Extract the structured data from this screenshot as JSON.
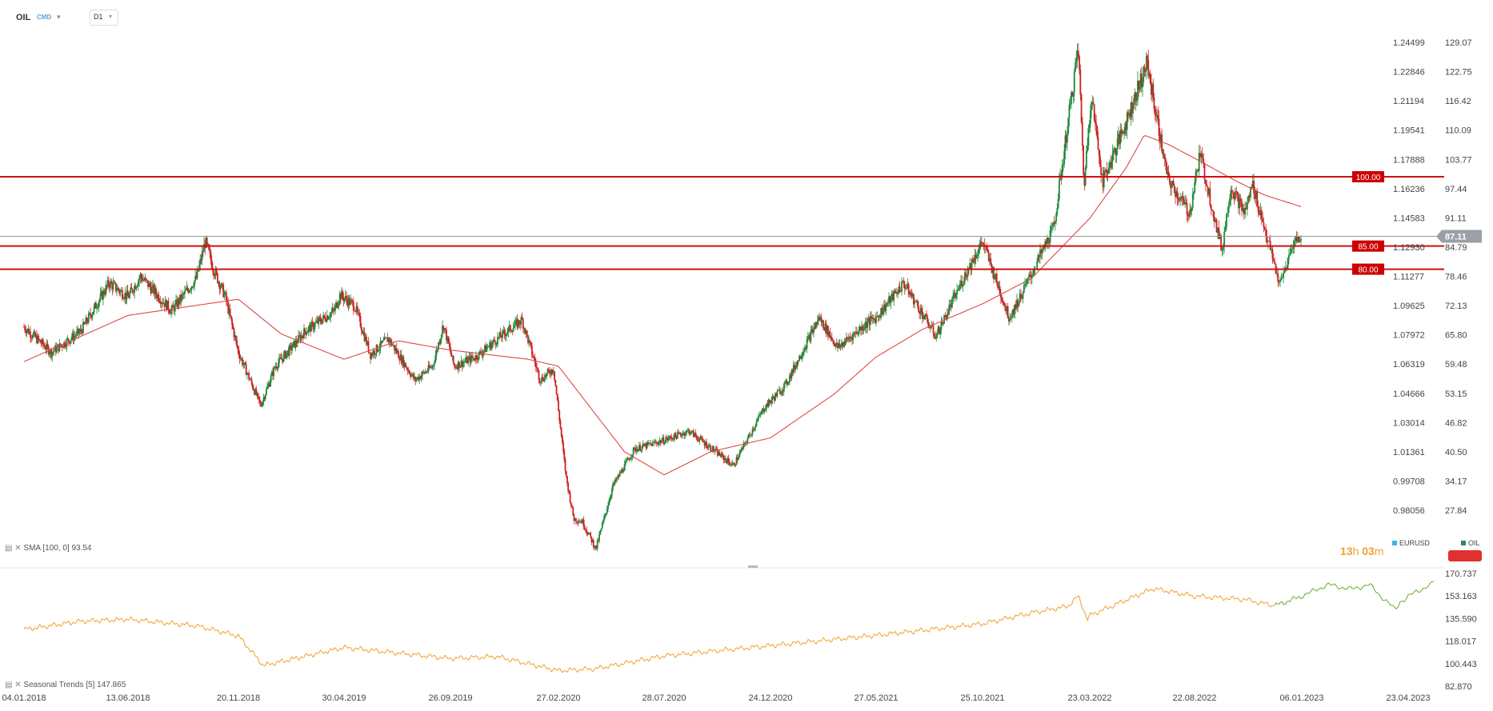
{
  "toolbar": {
    "symbol": "OIL",
    "symbol_type": "CMD",
    "timeframe": "D1"
  },
  "colors": {
    "up_candle": "#1a8a3a",
    "down_candle": "#cc2222",
    "sma_line": "#e04848",
    "level_line": "#d01010",
    "level_label_bg": "#cc0000",
    "price_tag_bg": "#9aa0a6",
    "seasonal_main": "#f0a030",
    "seasonal_forecast": "#6aaa2a",
    "eurusd_legend": "#3ab7e0",
    "oil_legend": "#2a8a5a"
  },
  "chart_data": [
    {
      "type": "candlestick",
      "title": "OIL",
      "timeframe": "D1",
      "x_ticks": [
        "04.01.2018",
        "13.06.2018",
        "20.11.2018",
        "30.04.2019",
        "26.09.2019",
        "27.02.2020",
        "28.07.2020",
        "24.12.2020",
        "27.05.2021",
        "25.10.2021",
        "23.03.2022",
        "22.08.2022",
        "06.01.2023",
        "23.04.2023"
      ],
      "y_right_ticks": [
        "129.07",
        "122.75",
        "116.42",
        "110.09",
        "103.77",
        "97.44",
        "91.11",
        "84.79",
        "78.46",
        "72.13",
        "65.80",
        "59.48",
        "53.15",
        "46.82",
        "40.50",
        "34.17",
        "27.84"
      ],
      "y_left_ticks": [
        "1.24499",
        "1.22846",
        "1.21194",
        "1.19541",
        "1.17888",
        "1.16236",
        "1.14583",
        "1.12930",
        "1.11277",
        "1.09625",
        "1.07972",
        "1.06319",
        "1.04666",
        "1.03014",
        "1.01361",
        "0.99708",
        "0.98056"
      ],
      "ylim": [
        22.0,
        133.0
      ],
      "last_price": "87.11",
      "last_price_value": 87.11,
      "levels": [
        {
          "value": 100.0,
          "label": "100.00"
        },
        {
          "value": 85.0,
          "label": "85.00"
        },
        {
          "value": 80.0,
          "label": "80.00"
        }
      ],
      "indicator": {
        "name": "SMA",
        "label": "SMA [100,  0] 93.54",
        "period": 100,
        "last": 93.54
      },
      "price_path": [
        [
          "04.01.2018",
          67.5
        ],
        [
          "15.02.2018",
          62.0
        ],
        [
          "01.04.2018",
          66.5
        ],
        [
          "15.05.2018",
          77.0
        ],
        [
          "13.06.2018",
          74.0
        ],
        [
          "01.07.2018",
          78.5
        ],
        [
          "15.08.2018",
          71.0
        ],
        [
          "20.09.2018",
          78.0
        ],
        [
          "03.10.2018",
          86.0
        ],
        [
          "15.10.2018",
          80.0
        ],
        [
          "01.11.2018",
          74.0
        ],
        [
          "20.11.2018",
          62.0
        ],
        [
          "24.12.2018",
          50.5
        ],
        [
          "15.01.2019",
          59.0
        ],
        [
          "15.02.2019",
          64.0
        ],
        [
          "01.03.2019",
          66.5
        ],
        [
          "15.04.2019",
          71.0
        ],
        [
          "24.04.2019",
          74.5
        ],
        [
          "15.05.2019",
          72.0
        ],
        [
          "06.06.2019",
          61.5
        ],
        [
          "01.07.2019",
          65.0
        ],
        [
          "07.08.2019",
          56.0
        ],
        [
          "01.09.2019",
          59.0
        ],
        [
          "16.09.2019",
          68.0
        ],
        [
          "01.10.2019",
          59.0
        ],
        [
          "01.11.2019",
          61.0
        ],
        [
          "15.12.2019",
          66.5
        ],
        [
          "06.01.2020",
          69.0
        ],
        [
          "01.02.2020",
          56.0
        ],
        [
          "20.02.2020",
          58.5
        ],
        [
          "09.03.2020",
          35.0
        ],
        [
          "20.03.2020",
          26.0
        ],
        [
          "01.04.2020",
          25.5
        ],
        [
          "21.04.2020",
          19.5
        ],
        [
          "15.05.2020",
          33.0
        ],
        [
          "15.06.2020",
          41.0
        ],
        [
          "28.07.2020",
          43.0
        ],
        [
          "01.09.2020",
          45.0
        ],
        [
          "02.11.2020",
          37.5
        ],
        [
          "15.12.2020",
          50.0
        ],
        [
          "15.01.2021",
          55.0
        ],
        [
          "05.03.2021",
          69.5
        ],
        [
          "01.04.2021",
          63.0
        ],
        [
          "15.05.2021",
          68.5
        ],
        [
          "27.05.2021",
          69.5
        ],
        [
          "05.07.2021",
          77.0
        ],
        [
          "20.08.2021",
          65.5
        ],
        [
          "01.10.2021",
          79.0
        ],
        [
          "25.10.2021",
          86.0
        ],
        [
          "01.12.2021",
          69.5
        ],
        [
          "15.12.2021",
          73.5
        ],
        [
          "01.02.2022",
          89.0
        ],
        [
          "07.03.2022",
          128.0
        ],
        [
          "15.03.2022",
          98.0
        ],
        [
          "25.03.2022",
          118.0
        ],
        [
          "11.04.2022",
          99.0
        ],
        [
          "15.05.2022",
          112.0
        ],
        [
          "14.06.2022",
          124.5
        ],
        [
          "14.07.2022",
          99.5
        ],
        [
          "15.08.2022",
          92.0
        ],
        [
          "29.08.2022",
          105.0
        ],
        [
          "26.09.2022",
          84.0
        ],
        [
          "07.10.2022",
          98.0
        ],
        [
          "25.10.2022",
          92.0
        ],
        [
          "04.11.2022",
          98.5
        ],
        [
          "09.12.2022",
          76.5
        ],
        [
          "27.12.2022",
          86.0
        ],
        [
          "05.01.2023",
          87.11
        ]
      ],
      "sma_path": [
        [
          "04.01.2018",
          60.0
        ],
        [
          "13.06.2018",
          70.0
        ],
        [
          "20.11.2018",
          73.5
        ],
        [
          "24.01.2019",
          66.0
        ],
        [
          "30.04.2019",
          60.5
        ],
        [
          "15.07.2019",
          64.5
        ],
        [
          "26.09.2019",
          62.5
        ],
        [
          "15.01.2020",
          60.5
        ],
        [
          "27.02.2020",
          59.0
        ],
        [
          "01.06.2020",
          40.5
        ],
        [
          "28.07.2020",
          35.5
        ],
        [
          "01.10.2020",
          40.5
        ],
        [
          "24.12.2020",
          43.5
        ],
        [
          "27.03.2021",
          53.0
        ],
        [
          "27.05.2021",
          61.0
        ],
        [
          "01.08.2021",
          67.0
        ],
        [
          "25.10.2021",
          72.5
        ],
        [
          "01.01.2022",
          78.0
        ],
        [
          "23.03.2022",
          91.0
        ],
        [
          "15.05.2022",
          102.0
        ],
        [
          "10.06.2022",
          109.0
        ],
        [
          "15.07.2022",
          107.0
        ],
        [
          "22.08.2022",
          104.0
        ],
        [
          "15.10.2022",
          99.0
        ],
        [
          "20.11.2022",
          96.0
        ],
        [
          "05.01.2023",
          93.54
        ]
      ]
    },
    {
      "type": "line",
      "title": "Seasonal Trends",
      "indicator_label": "Seasonal  Trends  [5]  147.865",
      "y_ticks": [
        "170.737",
        "153.163",
        "135.590",
        "118.017",
        "100.443",
        "82.870"
      ],
      "ylim": [
        82.87,
        172.0
      ],
      "series": [
        {
          "color": "#f0a030",
          "values": [
            [
              "04.01.2018",
              127.0
            ],
            [
              "01.04.2018",
              133.5
            ],
            [
              "13.06.2018",
              135.0
            ],
            [
              "20.09.2018",
              130.0
            ],
            [
              "20.11.2018",
              122.0
            ],
            [
              "28.12.2018",
              99.0
            ],
            [
              "30.04.2019",
              113.0
            ],
            [
              "26.09.2019",
              104.5
            ],
            [
              "01.12.2019",
              106.0
            ],
            [
              "27.02.2020",
              95.0
            ],
            [
              "20.04.2020",
              96.5
            ],
            [
              "28.07.2020",
              106.5
            ],
            [
              "24.12.2020",
              114.5
            ],
            [
              "27.05.2021",
              122.5
            ],
            [
              "25.10.2021",
              131.5
            ],
            [
              "01.01.2022",
              140.0
            ],
            [
              "20.02.2022",
              145.0
            ],
            [
              "07.03.2022",
              153.0
            ],
            [
              "20.03.2022",
              135.0
            ],
            [
              "23.03.2022",
              138.0
            ],
            [
              "23.06.2022",
              159.0
            ],
            [
              "22.08.2022",
              153.0
            ],
            [
              "25.10.2022",
              150.5
            ],
            [
              "02.12.2022",
              145.5
            ]
          ]
        },
        {
          "color": "#6aaa2a",
          "values": [
            [
              "02.12.2022",
              145.5
            ],
            [
              "06.01.2023",
              153.0
            ],
            [
              "01.02.2023",
              162.0
            ],
            [
              "25.02.2023",
              158.5
            ],
            [
              "15.03.2023",
              162.0
            ],
            [
              "28.03.2023",
              152.0
            ],
            [
              "10.04.2023",
              142.5
            ],
            [
              "15.04.2023",
              149.0
            ],
            [
              "20.04.2023",
              150.5
            ],
            [
              "01.05.2023",
              157.0
            ],
            [
              "15.05.2023",
              161.0
            ],
            [
              "20.05.2023",
              166.0
            ]
          ]
        }
      ]
    }
  ],
  "legend": {
    "eurusd": "EURUSD",
    "oil": "OIL"
  },
  "timer": {
    "hours": "13",
    "h_unit": "h",
    "minutes": "03",
    "m_unit": "m"
  }
}
